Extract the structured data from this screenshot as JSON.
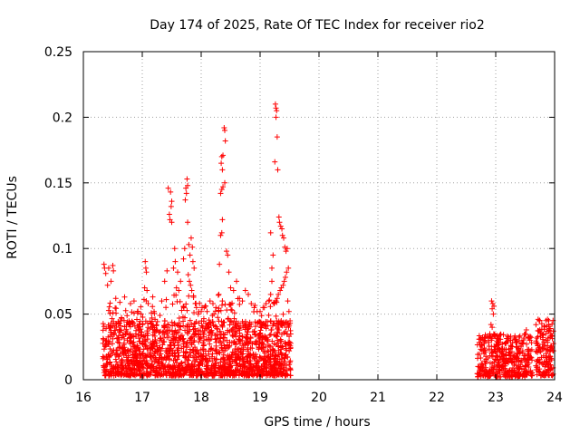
{
  "chart_data": {
    "type": "scatter",
    "title": "Day 174 of 2025, Rate Of TEC Index for receiver rio2",
    "xlabel": "GPS time / hours",
    "ylabel": "ROTI / TECUs",
    "xlim": [
      16,
      24
    ],
    "ylim": [
      0,
      0.25
    ],
    "x_ticks": [
      16,
      17,
      18,
      19,
      20,
      21,
      22,
      23,
      24
    ],
    "x_tick_labels": [
      "16",
      "17",
      "18",
      "19",
      "20",
      "21",
      "22",
      "23",
      "24"
    ],
    "y_ticks": [
      0,
      0.05,
      0.1,
      0.15,
      0.2,
      0.25
    ],
    "y_tick_labels": [
      "0",
      "0.05",
      "0.1",
      "0.15",
      "0.2",
      "0.25"
    ],
    "grid": true,
    "marker": "+",
    "color": "#ff0000",
    "series": [
      {
        "name": "rio2",
        "clusters": [
          {
            "x_range": [
              16.33,
              19.52
            ],
            "y_range": [
              0.003,
              0.045
            ],
            "count": 1700,
            "skew": 1.6
          },
          {
            "x_range": [
              16.33,
              19.52
            ],
            "y_range": [
              0.04,
              0.065
            ],
            "count": 140,
            "skew": 1.3
          },
          {
            "x_range": [
              22.68,
              23.62
            ],
            "y_range": [
              0.002,
              0.035
            ],
            "count": 420,
            "skew": 1.5
          },
          {
            "x_range": [
              23.68,
              23.98
            ],
            "y_range": [
              0.003,
              0.046
            ],
            "count": 150,
            "skew": 1.5
          }
        ],
        "points": [
          [
            16.35,
            0.088
          ],
          [
            16.36,
            0.085
          ],
          [
            16.38,
            0.081
          ],
          [
            16.41,
            0.072
          ],
          [
            16.43,
            0.085
          ],
          [
            16.5,
            0.087
          ],
          [
            16.51,
            0.083
          ],
          [
            16.47,
            0.075
          ],
          [
            16.55,
            0.062
          ],
          [
            16.62,
            0.059
          ],
          [
            16.7,
            0.063
          ],
          [
            16.8,
            0.058
          ],
          [
            16.86,
            0.06
          ],
          [
            16.92,
            0.052
          ],
          [
            16.98,
            0.05
          ],
          [
            17.03,
            0.061
          ],
          [
            17.05,
            0.09
          ],
          [
            17.06,
            0.085
          ],
          [
            17.07,
            0.082
          ],
          [
            17.04,
            0.07
          ],
          [
            17.08,
            0.068
          ],
          [
            17.1,
            0.058
          ],
          [
            17.2,
            0.052
          ],
          [
            17.3,
            0.049
          ],
          [
            17.33,
            0.06
          ],
          [
            17.38,
            0.075
          ],
          [
            17.42,
            0.083
          ],
          [
            17.44,
            0.146
          ],
          [
            17.48,
            0.143
          ],
          [
            17.5,
            0.136
          ],
          [
            17.49,
            0.132
          ],
          [
            17.46,
            0.126
          ],
          [
            17.47,
            0.122
          ],
          [
            17.5,
            0.12
          ],
          [
            17.53,
            0.085
          ],
          [
            17.58,
            0.07
          ],
          [
            17.56,
            0.09
          ],
          [
            17.55,
            0.1
          ],
          [
            17.6,
            0.082
          ],
          [
            17.62,
            0.068
          ],
          [
            17.65,
            0.075
          ],
          [
            17.7,
            0.092
          ],
          [
            17.72,
            0.1
          ],
          [
            17.74,
            0.146
          ],
          [
            17.76,
            0.153
          ],
          [
            17.77,
            0.148
          ],
          [
            17.75,
            0.142
          ],
          [
            17.73,
            0.137
          ],
          [
            17.77,
            0.12
          ],
          [
            17.79,
            0.103
          ],
          [
            17.81,
            0.095
          ],
          [
            17.83,
            0.108
          ],
          [
            17.85,
            0.101
          ],
          [
            17.86,
            0.09
          ],
          [
            17.88,
            0.085
          ],
          [
            17.78,
            0.08
          ],
          [
            17.8,
            0.075
          ],
          [
            17.82,
            0.072
          ],
          [
            17.84,
            0.068
          ],
          [
            17.87,
            0.064
          ],
          [
            17.9,
            0.058
          ],
          [
            17.92,
            0.055
          ],
          [
            17.95,
            0.05
          ],
          [
            18.0,
            0.052
          ],
          [
            18.05,
            0.055
          ],
          [
            18.1,
            0.052
          ],
          [
            18.15,
            0.06
          ],
          [
            18.2,
            0.058
          ],
          [
            18.25,
            0.055
          ],
          [
            18.3,
            0.065
          ],
          [
            18.31,
            0.088
          ],
          [
            18.33,
            0.11
          ],
          [
            18.35,
            0.112
          ],
          [
            18.36,
            0.122
          ],
          [
            18.33,
            0.142
          ],
          [
            18.35,
            0.145
          ],
          [
            18.37,
            0.147
          ],
          [
            18.36,
            0.16
          ],
          [
            18.34,
            0.165
          ],
          [
            18.37,
            0.171
          ],
          [
            18.35,
            0.17
          ],
          [
            18.39,
            0.192
          ],
          [
            18.4,
            0.19
          ],
          [
            18.41,
            0.182
          ],
          [
            18.4,
            0.15
          ],
          [
            18.43,
            0.098
          ],
          [
            18.45,
            0.095
          ],
          [
            18.47,
            0.082
          ],
          [
            18.5,
            0.07
          ],
          [
            18.55,
            0.068
          ],
          [
            18.6,
            0.075
          ],
          [
            18.65,
            0.062
          ],
          [
            18.7,
            0.06
          ],
          [
            18.75,
            0.068
          ],
          [
            18.8,
            0.065
          ],
          [
            18.85,
            0.058
          ],
          [
            18.9,
            0.055
          ],
          [
            18.95,
            0.052
          ],
          [
            19.0,
            0.052
          ],
          [
            19.05,
            0.055
          ],
          [
            19.1,
            0.058
          ],
          [
            19.15,
            0.06
          ],
          [
            19.18,
            0.065
          ],
          [
            19.2,
            0.075
          ],
          [
            19.2,
            0.085
          ],
          [
            19.22,
            0.095
          ],
          [
            19.18,
            0.112
          ],
          [
            19.25,
            0.166
          ],
          [
            19.26,
            0.21
          ],
          [
            19.27,
            0.207
          ],
          [
            19.28,
            0.205
          ],
          [
            19.27,
            0.2
          ],
          [
            19.29,
            0.185
          ],
          [
            19.3,
            0.16
          ],
          [
            19.32,
            0.124
          ],
          [
            19.33,
            0.12
          ],
          [
            19.35,
            0.117
          ],
          [
            19.37,
            0.115
          ],
          [
            19.38,
            0.11
          ],
          [
            19.4,
            0.108
          ],
          [
            19.42,
            0.101
          ],
          [
            19.44,
            0.098
          ],
          [
            19.46,
            0.1
          ],
          [
            19.48,
            0.085
          ],
          [
            19.45,
            0.082
          ],
          [
            19.43,
            0.078
          ],
          [
            19.41,
            0.075
          ],
          [
            19.39,
            0.072
          ],
          [
            19.36,
            0.07
          ],
          [
            19.34,
            0.068
          ],
          [
            19.31,
            0.065
          ],
          [
            19.29,
            0.062
          ],
          [
            19.27,
            0.06
          ],
          [
            19.24,
            0.058
          ],
          [
            19.47,
            0.06
          ],
          [
            19.49,
            0.052
          ],
          [
            22.93,
            0.06
          ],
          [
            22.95,
            0.058
          ],
          [
            22.97,
            0.056
          ],
          [
            22.94,
            0.054
          ],
          [
            22.96,
            0.05
          ],
          [
            22.92,
            0.042
          ],
          [
            22.94,
            0.04
          ],
          [
            22.9,
            0.035
          ],
          [
            22.85,
            0.033
          ],
          [
            22.8,
            0.03
          ],
          [
            23.5,
            0.035
          ],
          [
            23.52,
            0.038
          ],
          [
            23.55,
            0.032
          ],
          [
            23.58,
            0.03
          ],
          [
            23.45,
            0.028
          ],
          [
            23.35,
            0.025
          ],
          [
            23.72,
            0.046
          ],
          [
            23.74,
            0.045
          ],
          [
            23.88,
            0.046
          ],
          [
            23.9,
            0.045
          ],
          [
            23.95,
            0.025
          ],
          [
            23.98,
            0.022
          ],
          [
            23.85,
            0.035
          ],
          [
            23.8,
            0.032
          ]
        ]
      }
    ]
  }
}
